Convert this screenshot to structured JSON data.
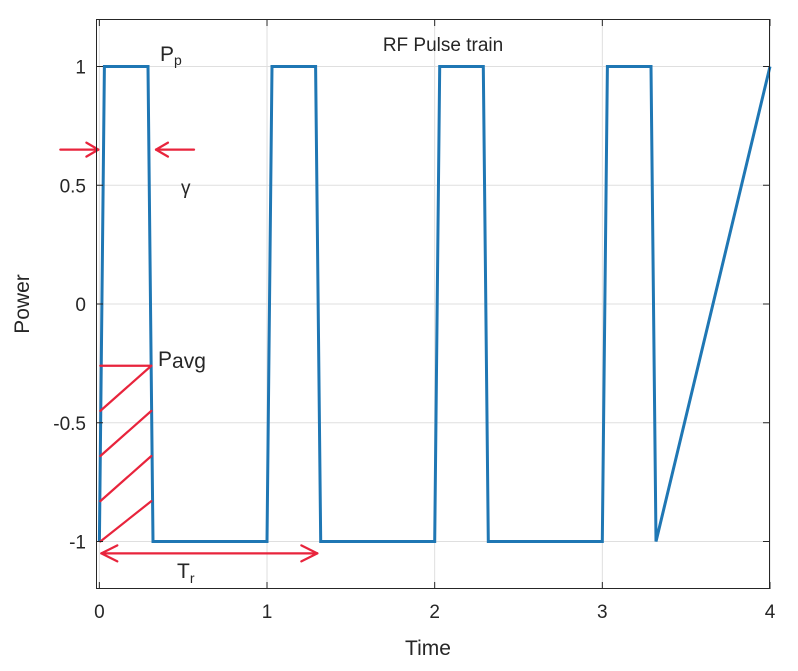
{
  "chart_data": {
    "type": "line",
    "title": "RF Pulse train",
    "xlabel": "Time",
    "ylabel": "Power",
    "xlim": [
      -0.02,
      4.0
    ],
    "ylim": [
      -1.2,
      1.2
    ],
    "xticks": [
      0,
      1,
      2,
      3,
      4
    ],
    "xtick_labels": [
      "0",
      "1",
      "2",
      "3",
      "4"
    ],
    "yticks": [
      -1,
      -0.5,
      0,
      0.5,
      1
    ],
    "ytick_labels": [
      "-1",
      "-0.5",
      "0",
      "0.5",
      "1"
    ],
    "grid": true,
    "series": [
      {
        "color": "#1f77b4",
        "x": [
          0,
          0.03,
          0.29,
          0.32,
          1.0,
          1.03,
          1.29,
          1.32,
          2.0,
          2.03,
          2.29,
          2.32,
          3.0,
          3.03,
          3.29,
          3.32,
          4.0
        ],
        "y": [
          -1,
          1,
          1,
          -1,
          -1,
          1,
          1,
          -1,
          -1,
          1,
          1,
          -1,
          -1,
          1,
          1,
          -1,
          1
        ]
      }
    ],
    "annotations": {
      "color": "#e8243c",
      "peak": {
        "base": "P",
        "sub": "p"
      },
      "duty": {
        "text": "γ"
      },
      "average": {
        "base": "P",
        "sub": "avg"
      },
      "period": {
        "base": "T",
        "sub": "r"
      }
    }
  }
}
